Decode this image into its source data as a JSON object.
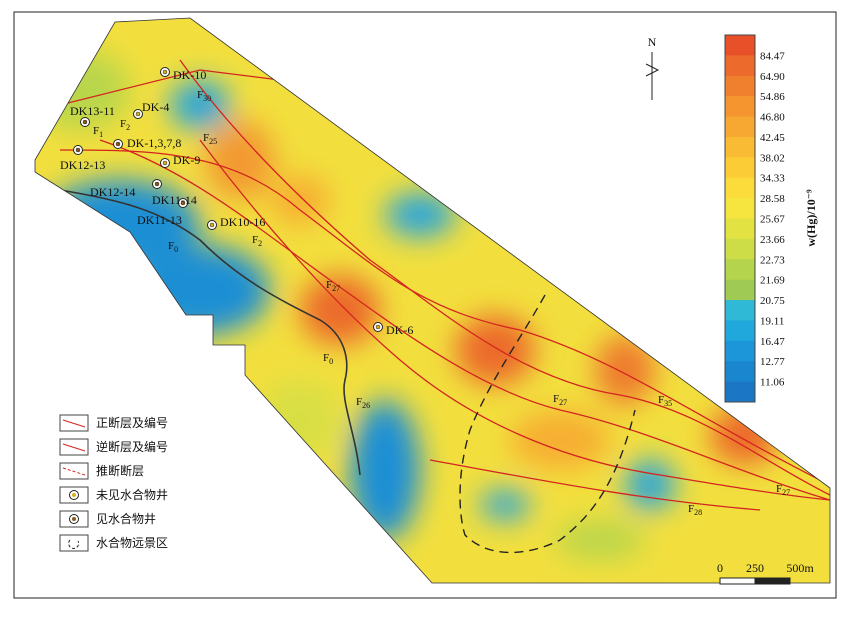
{
  "north": "N",
  "wells": [
    "DK-10",
    "DK13-11",
    "DK-4",
    "DK-1,3,7,8",
    "DK12-13",
    "DK-9",
    "DK12-14",
    "DK11-14",
    "DK11-13",
    "DK10-16",
    "DK-6"
  ],
  "faults": [
    {
      "letter": "F",
      "sub": "30"
    },
    {
      "letter": "F",
      "sub": "2"
    },
    {
      "letter": "F",
      "sub": "1"
    },
    {
      "letter": "F",
      "sub": "25"
    },
    {
      "letter": "F",
      "sub": "0"
    },
    {
      "letter": "F",
      "sub": "2"
    },
    {
      "letter": "F",
      "sub": "27"
    },
    {
      "letter": "F",
      "sub": "0"
    },
    {
      "letter": "F",
      "sub": "26"
    },
    {
      "letter": "F",
      "sub": "27"
    },
    {
      "letter": "F",
      "sub": "35"
    },
    {
      "letter": "F",
      "sub": "27"
    },
    {
      "letter": "F",
      "sub": "28"
    }
  ],
  "legend": [
    "正断层及编号",
    "逆断层及编号",
    "推断断层",
    "未见水合物井",
    "见水合物井",
    "水合物远景区"
  ],
  "scale": [
    "0",
    "250",
    "500m"
  ],
  "colorbar": {
    "title": "w(Hg)/10⁻⁹",
    "labels": [
      "84.47",
      "64.90",
      "54.86",
      "46.80",
      "42.45",
      "38.02",
      "34.33",
      "28.58",
      "25.67",
      "23.66",
      "22.73",
      "21.69",
      "20.75",
      "19.11",
      "16.47",
      "12.77",
      "11.06"
    ],
    "colors": [
      "#e8502a",
      "#ec6a2c",
      "#f07f2e",
      "#f4952f",
      "#f7a832",
      "#f9bb33",
      "#fbcc35",
      "#fcdc3a",
      "#f6e43f",
      "#e2e243",
      "#cddd48",
      "#b5d44e",
      "#9fcb54",
      "#2fb9d6",
      "#20a8dc",
      "#1c96d8",
      "#1a86d0",
      "#1b77c6"
    ]
  }
}
